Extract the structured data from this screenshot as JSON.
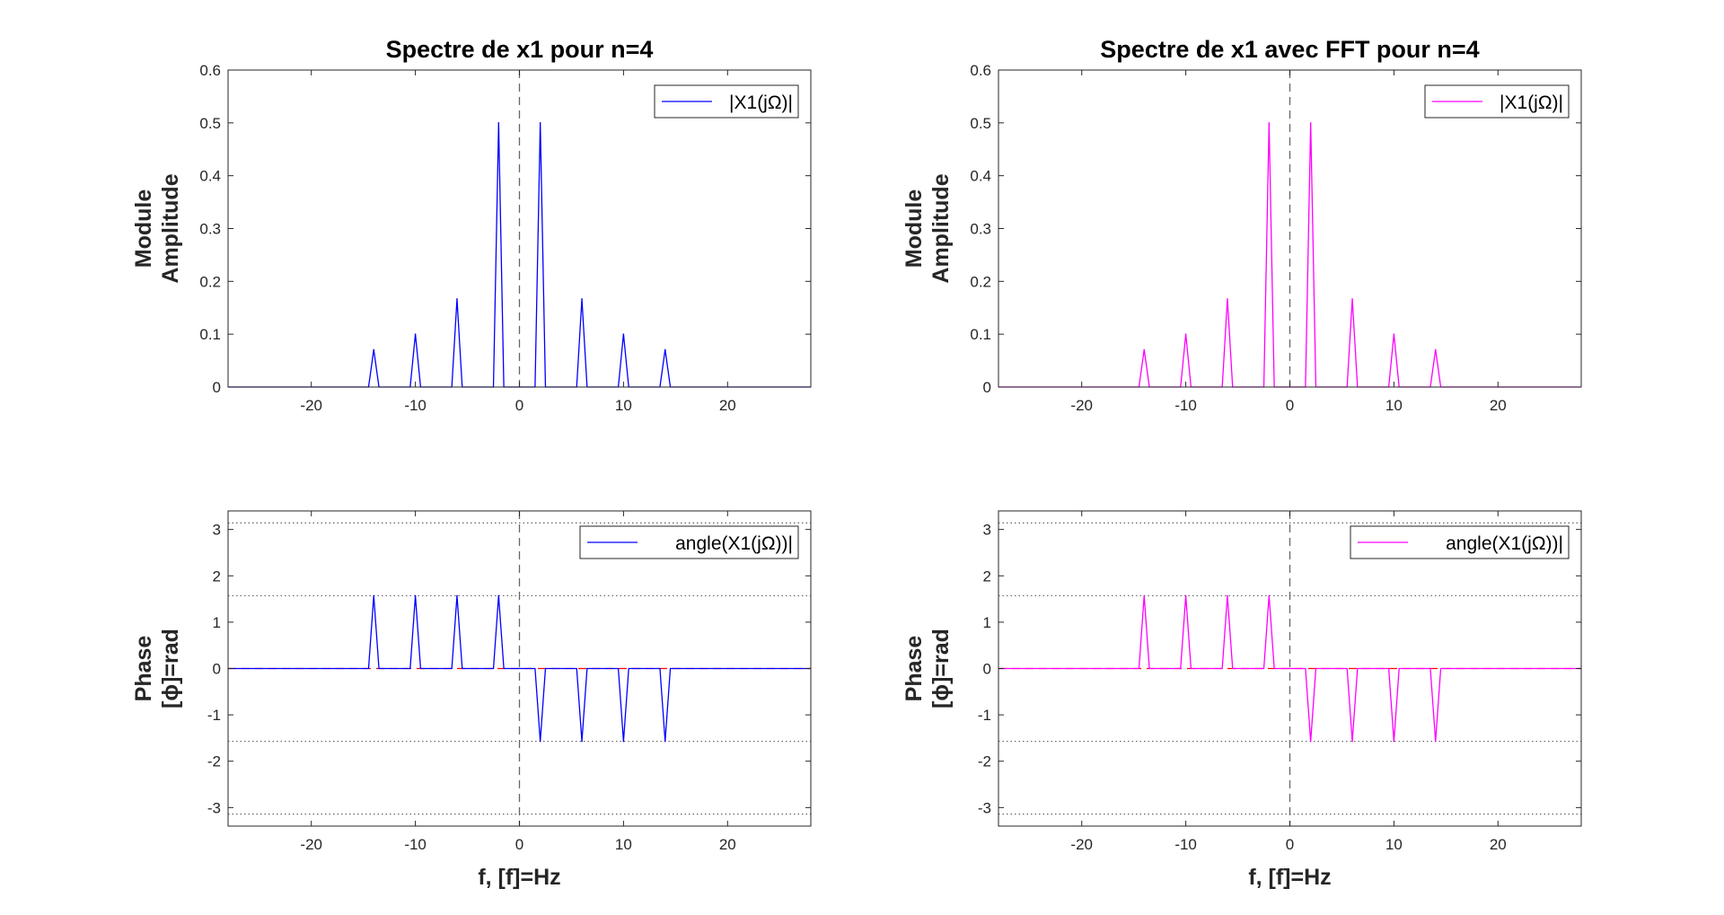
{
  "chart_data": [
    {
      "id": "mag-cont",
      "type": "line",
      "title": "Spectre de x1 pour n=4",
      "ylabel": [
        "Module",
        "Amplitude"
      ],
      "xlabel": "",
      "xlim": [
        -28,
        28
      ],
      "ylim": [
        0,
        0.6
      ],
      "xticks": [
        -20,
        -10,
        0,
        10,
        20
      ],
      "yticks": [
        0,
        0.1,
        0.2,
        0.3,
        0.4,
        0.5,
        0.6
      ],
      "legend": {
        "position": "top-right"
      },
      "series": [
        {
          "name": "|X1(jΩ)|",
          "color": "#0000ff",
          "x": [
            -28,
            -14.5,
            -14,
            -13.5,
            -10.5,
            -10,
            -9.5,
            -6.5,
            -6,
            -5.5,
            -2.5,
            -2,
            -1.5,
            1.5,
            2,
            2.5,
            5.5,
            6,
            6.5,
            9.5,
            10,
            10.5,
            13.5,
            14,
            14.5,
            28
          ],
          "y": [
            0,
            0,
            0.0707,
            0,
            0,
            0.1,
            0,
            0,
            0.1667,
            0,
            0,
            0.5,
            0,
            0,
            0.5,
            0,
            0,
            0.1667,
            0,
            0,
            0.1,
            0,
            0,
            0.0707,
            0,
            0
          ]
        }
      ],
      "reference_lines": [
        {
          "orientation": "vertical",
          "value": 0,
          "style": "dashed",
          "color": "#666666"
        }
      ]
    },
    {
      "id": "mag-fft",
      "type": "line",
      "title": "Spectre de x1 avec FFT pour n=4",
      "ylabel": [
        "Module",
        "Amplitude"
      ],
      "xlabel": "",
      "xlim": [
        -28,
        28
      ],
      "ylim": [
        0,
        0.6
      ],
      "xticks": [
        -20,
        -10,
        0,
        10,
        20
      ],
      "yticks": [
        0,
        0.1,
        0.2,
        0.3,
        0.4,
        0.5,
        0.6
      ],
      "legend": {
        "position": "top-right"
      },
      "series": [
        {
          "name": "|X1(jΩ)|",
          "color": "#ff00ff",
          "x": [
            -28,
            -14.5,
            -14,
            -13.5,
            -10.5,
            -10,
            -9.5,
            -6.5,
            -6,
            -5.5,
            -2.5,
            -2,
            -1.5,
            1.5,
            2,
            2.5,
            5.5,
            6,
            6.5,
            9.5,
            10,
            10.5,
            13.5,
            14,
            14.5,
            28
          ],
          "y": [
            0,
            0,
            0.0707,
            0,
            0,
            0.1,
            0,
            0,
            0.1667,
            0,
            0,
            0.5,
            0,
            0,
            0.5,
            0,
            0,
            0.1667,
            0,
            0,
            0.1,
            0,
            0,
            0.0707,
            0,
            0
          ]
        }
      ],
      "reference_lines": [
        {
          "orientation": "vertical",
          "value": 0,
          "style": "dashed",
          "color": "#666666"
        }
      ]
    },
    {
      "id": "phase-cont",
      "type": "line",
      "title": "",
      "ylabel": [
        "Phase",
        "[ϕ]=rad"
      ],
      "xlabel": "f, [f]=Hz",
      "xlim": [
        -28,
        28
      ],
      "ylim": [
        -3.4,
        3.4
      ],
      "xticks": [
        -20,
        -10,
        0,
        10,
        20
      ],
      "yticks": [
        -3,
        -2,
        -1,
        0,
        1,
        2,
        3
      ],
      "legend": {
        "position": "top-right"
      },
      "series": [
        {
          "name": "angle(X1(jΩ))|",
          "color": "#0000ff",
          "x": [
            -28,
            -14.5,
            -14,
            -13.5,
            -10.5,
            -10,
            -9.5,
            -6.5,
            -6,
            -5.5,
            -2.5,
            -2,
            -1.5,
            1.5,
            2,
            2.5,
            5.5,
            6,
            6.5,
            9.5,
            10,
            10.5,
            13.5,
            14,
            14.5,
            28
          ],
          "y": [
            0,
            0,
            1.5708,
            0,
            0,
            1.5708,
            0,
            0,
            1.5708,
            0,
            0,
            1.5708,
            0,
            0,
            -1.5708,
            0,
            0,
            -1.5708,
            0,
            0,
            -1.5708,
            0,
            0,
            -1.5708,
            0,
            0
          ]
        }
      ],
      "reference_lines": [
        {
          "orientation": "vertical",
          "value": 0,
          "style": "dashed",
          "color": "#666666"
        },
        {
          "orientation": "horizontal",
          "value": 0,
          "style": "dashed",
          "color": "#ff0000"
        },
        {
          "orientation": "horizontal",
          "value": 3.1416,
          "style": "dotted",
          "color": "#666666"
        },
        {
          "orientation": "horizontal",
          "value": 1.5708,
          "style": "dotted",
          "color": "#666666"
        },
        {
          "orientation": "horizontal",
          "value": -1.5708,
          "style": "dotted",
          "color": "#666666"
        },
        {
          "orientation": "horizontal",
          "value": -3.1416,
          "style": "dotted",
          "color": "#666666"
        }
      ]
    },
    {
      "id": "phase-fft",
      "type": "line",
      "title": "",
      "ylabel": [
        "Phase",
        "[ϕ]=rad"
      ],
      "xlabel": "f, [f]=Hz",
      "xlim": [
        -28,
        28
      ],
      "ylim": [
        -3.4,
        3.4
      ],
      "xticks": [
        -20,
        -10,
        0,
        10,
        20
      ],
      "yticks": [
        -3,
        -2,
        -1,
        0,
        1,
        2,
        3
      ],
      "legend": {
        "position": "top-right"
      },
      "series": [
        {
          "name": "angle(X1(jΩ))|",
          "color": "#ff00ff",
          "x": [
            -28,
            -14.5,
            -14,
            -13.5,
            -10.5,
            -10,
            -9.5,
            -6.5,
            -6,
            -5.5,
            -2.5,
            -2,
            -1.5,
            1.5,
            2,
            2.5,
            5.5,
            6,
            6.5,
            9.5,
            10,
            10.5,
            13.5,
            14,
            14.5,
            28
          ],
          "y": [
            0,
            0,
            1.5708,
            0,
            0,
            1.5708,
            0,
            0,
            1.5708,
            0,
            0,
            1.5708,
            0,
            0,
            -1.5708,
            0,
            0,
            -1.5708,
            0,
            0,
            -1.5708,
            0,
            0,
            -1.5708,
            0,
            0
          ]
        }
      ],
      "reference_lines": [
        {
          "orientation": "vertical",
          "value": 0,
          "style": "dashed",
          "color": "#666666"
        },
        {
          "orientation": "horizontal",
          "value": 0,
          "style": "dashed",
          "color": "#ff0000"
        },
        {
          "orientation": "horizontal",
          "value": 3.1416,
          "style": "dotted",
          "color": "#666666"
        },
        {
          "orientation": "horizontal",
          "value": 1.5708,
          "style": "dotted",
          "color": "#666666"
        },
        {
          "orientation": "horizontal",
          "value": -1.5708,
          "style": "dotted",
          "color": "#666666"
        },
        {
          "orientation": "horizontal",
          "value": -3.1416,
          "style": "dotted",
          "color": "#666666"
        }
      ]
    }
  ]
}
